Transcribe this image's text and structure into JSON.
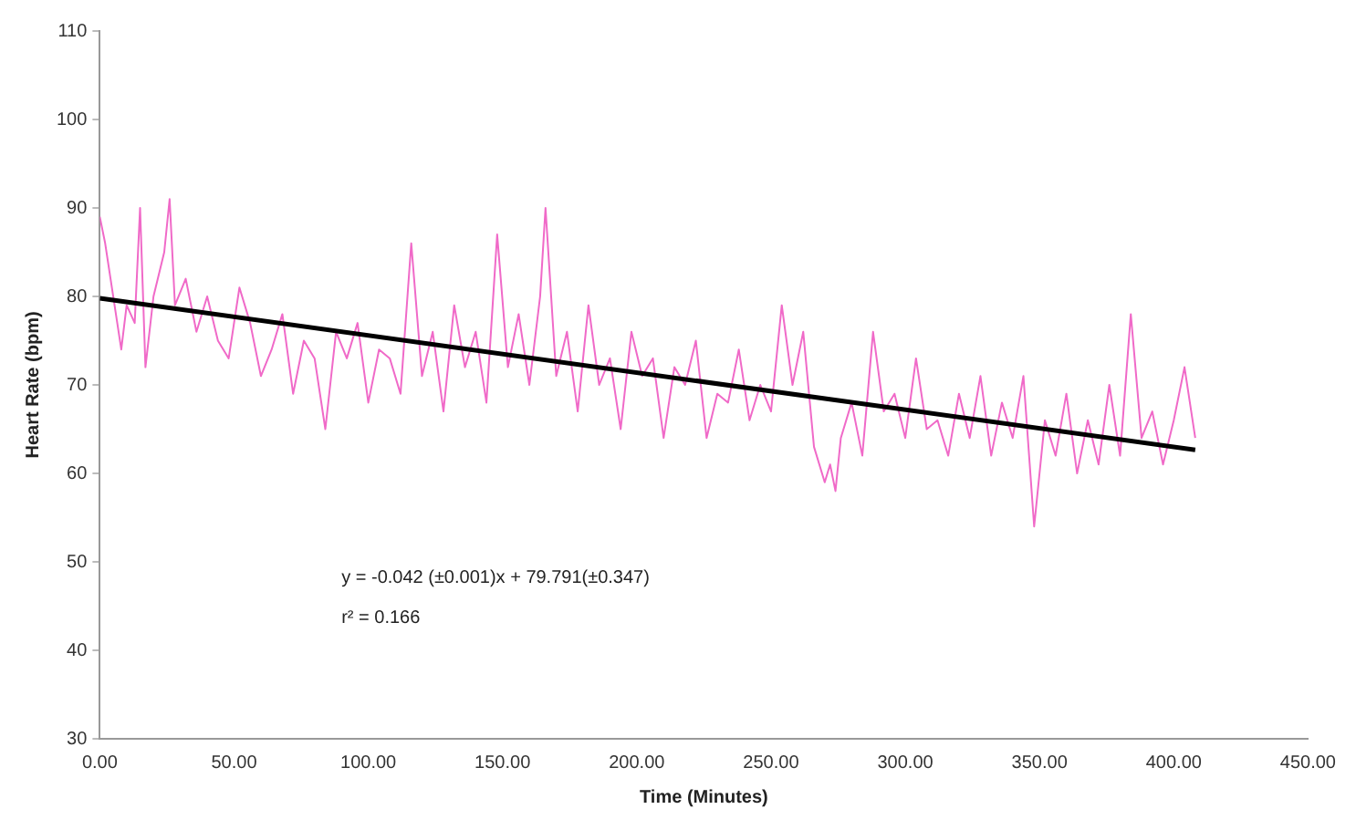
{
  "chart_data": {
    "type": "line",
    "xlabel": "Time (Minutes)",
    "ylabel": "Heart Rate (bpm)",
    "xlim": [
      0,
      450
    ],
    "ylim": [
      30,
      110
    ],
    "xticks": [
      {
        "value": 0,
        "label": "0.00"
      },
      {
        "value": 50,
        "label": "50.00"
      },
      {
        "value": 100,
        "label": "100.00"
      },
      {
        "value": 150,
        "label": "150.00"
      },
      {
        "value": 200,
        "label": "200.00"
      },
      {
        "value": 250,
        "label": "250.00"
      },
      {
        "value": 300,
        "label": "300.00"
      },
      {
        "value": 350,
        "label": "350.00"
      },
      {
        "value": 400,
        "label": "400.00"
      },
      {
        "value": 450,
        "label": "450.00"
      }
    ],
    "yticks": [
      30,
      40,
      50,
      60,
      70,
      80,
      90,
      100,
      110
    ],
    "grid": false,
    "legend": false,
    "marker": "none",
    "line_style": "solid",
    "annotations": [
      "y = -0.042 (±0.001)x + 79.791(±0.347)",
      "r² = 0.166"
    ],
    "series": [
      {
        "color": "#f06ac8",
        "x": [
          0,
          2,
          4,
          6,
          8,
          10,
          13,
          15,
          17,
          20,
          24,
          26,
          28,
          32,
          36,
          40,
          44,
          48,
          52,
          56,
          60,
          64,
          68,
          72,
          76,
          80,
          84,
          88,
          92,
          96,
          100,
          104,
          108,
          112,
          116,
          120,
          124,
          128,
          132,
          136,
          140,
          144,
          148,
          152,
          156,
          160,
          164,
          166,
          170,
          174,
          178,
          182,
          186,
          190,
          194,
          198,
          202,
          206,
          210,
          214,
          218,
          222,
          226,
          230,
          234,
          238,
          242,
          246,
          250,
          254,
          258,
          262,
          266,
          270,
          272,
          274,
          276,
          280,
          284,
          288,
          292,
          296,
          300,
          304,
          308,
          312,
          316,
          320,
          324,
          328,
          332,
          336,
          340,
          344,
          348,
          352,
          356,
          360,
          364,
          368,
          372,
          376,
          380,
          384,
          388,
          392,
          396,
          400,
          404,
          408
        ],
        "values": [
          89,
          86,
          82,
          78,
          74,
          79,
          77,
          90,
          72,
          80,
          85,
          91,
          79,
          82,
          76,
          80,
          75,
          73,
          81,
          77,
          71,
          74,
          78,
          69,
          75,
          73,
          65,
          76,
          73,
          77,
          68,
          74,
          73,
          69,
          86,
          71,
          76,
          67,
          79,
          72,
          76,
          68,
          87,
          72,
          78,
          70,
          80,
          90,
          71,
          76,
          67,
          79,
          70,
          73,
          65,
          76,
          71,
          73,
          64,
          72,
          70,
          75,
          64,
          69,
          68,
          74,
          66,
          70,
          67,
          79,
          70,
          76,
          63,
          59,
          61,
          58,
          64,
          68,
          62,
          76,
          67,
          69,
          64,
          73,
          65,
          66,
          62,
          69,
          64,
          71,
          62,
          68,
          64,
          71,
          54,
          66,
          62,
          69,
          60,
          66,
          61,
          70,
          62,
          78,
          64,
          67,
          61,
          66,
          72,
          64
        ]
      },
      {
        "type": "line",
        "color": "#000000",
        "x": [
          0,
          408
        ],
        "values": [
          79.791,
          62.655
        ]
      }
    ]
  }
}
